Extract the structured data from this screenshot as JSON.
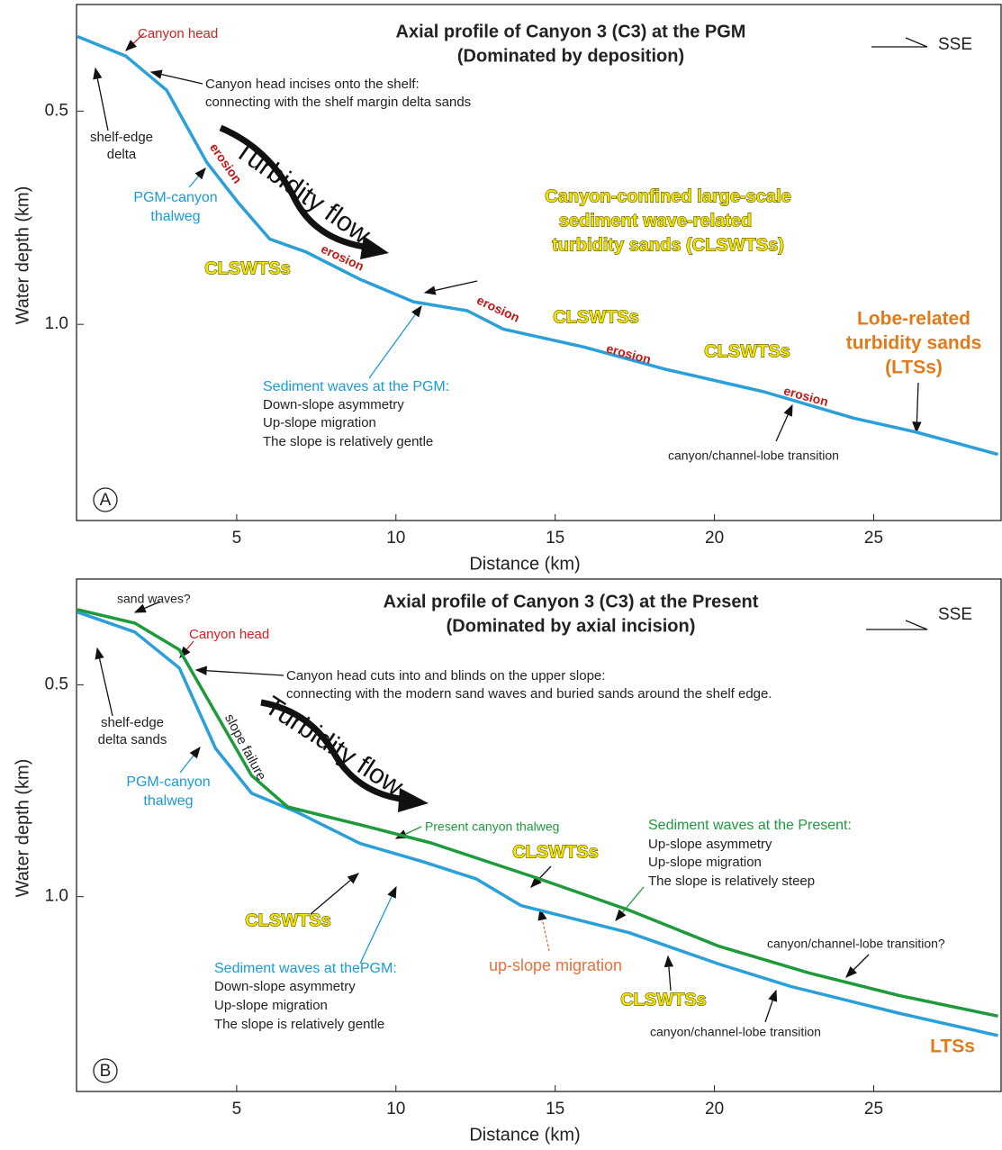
{
  "chart_data": [
    {
      "type": "line",
      "title": "Axial profile of Canyon 3 (C3) at the PGM",
      "subtitle": "(Dominated by deposition)",
      "xlabel": "Distance (km)",
      "ylabel": "Water depth (km)",
      "panel_label": "A",
      "direction": "SSE",
      "xlim": [
        0,
        29
      ],
      "ylim": [
        1.46,
        0.25
      ],
      "xticks": [
        5,
        10,
        15,
        20,
        25
      ],
      "yticks": [
        0.5,
        {
          "value": 1,
          "label": "1.0"
        }
      ],
      "series": [
        {
          "color": "#2a9fd8",
          "x": [
            0,
            1.52,
            2.8,
            4.06,
            5.05,
            6.04,
            7.17,
            8.86,
            10.55,
            12.24,
            13.37,
            15.9,
            18.45,
            21.55,
            24.37,
            26.35,
            28.9
          ],
          "values": [
            0.325,
            0.371,
            0.451,
            0.62,
            0.715,
            0.8,
            0.83,
            0.894,
            0.947,
            0.968,
            1.011,
            1.053,
            1.105,
            1.158,
            1.22,
            1.253,
            1.305
          ]
        }
      ],
      "annotations": [
        "Canyon head",
        "Canyon head incises onto the shelf:",
        "connecting with the shelf margin delta sands",
        "shelf-edge",
        "delta",
        "PGM-canyon",
        "thalweg",
        "erosion",
        "Turbidity flow",
        "erosion",
        "CLSWTSs",
        "Canyon-confined large-scale",
        "sediment wave-related",
        "turbidity sands (CLSWTSs)",
        "erosion",
        "CLSWTSs",
        "erosion",
        "CLSWTSs",
        "erosion",
        "Lobe-related",
        "turbidity sands",
        "(LTSs)",
        "Sediment waves at the PGM:",
        "Down-slope asymmetry",
        "Up-slope migration",
        "The slope is relatively gentle",
        "canyon/channel-lobe transition"
      ]
    },
    {
      "type": "line",
      "title": "Axial profile of Canyon 3 (C3) at the Present",
      "subtitle": "(Dominated by axial incision)",
      "xlabel": "Distance (km)",
      "ylabel": "Water depth (km)",
      "panel_label": "B",
      "direction": "SSE",
      "xlim": [
        0,
        29
      ],
      "ylim": [
        1.46,
        0.25
      ],
      "xticks": [
        5,
        10,
        15,
        20,
        25
      ],
      "yticks": [
        0.5,
        {
          "value": 1,
          "label": "1.0"
        }
      ],
      "series": [
        {
          "color": "#2a9fd8",
          "x": [
            0,
            1.8,
            3.2,
            4.34,
            5.47,
            6.88,
            8.86,
            10.83,
            12.52,
            13.93,
            17.32,
            20.14,
            22.4,
            25.78,
            28.9
          ],
          "values": [
            0.328,
            0.375,
            0.46,
            0.65,
            0.756,
            0.8,
            0.874,
            0.917,
            0.958,
            1.021,
            1.085,
            1.159,
            1.212,
            1.275,
            1.328
          ]
        },
        {
          "color": "#1e9a3c",
          "x": [
            0,
            1.8,
            3.2,
            4.34,
            5.47,
            6.6,
            8.86,
            11.1,
            14.5,
            17.32,
            20.14,
            22.96,
            25.78,
            28.9
          ],
          "values": [
            0.322,
            0.354,
            0.417,
            0.566,
            0.714,
            0.788,
            0.83,
            0.873,
            0.958,
            1.032,
            1.117,
            1.18,
            1.233,
            1.282
          ]
        }
      ],
      "annotations": [
        "sand waves?",
        "Canyon head",
        "Canyon head cuts into and blinds on the upper slope:",
        "connecting with the modern sand waves and buried sands around the shelf edge.",
        "shelf-edge",
        "delta sands",
        "slope failure",
        "PGM-canyon",
        "thalweg",
        "Turbidity flow",
        "Present canyon thalweg",
        "CLSWTSs",
        "Sediment waves at the Present:",
        "Up-slope asymmetry",
        "Up-slope migration",
        "The slope is relatively steep",
        "CLSWTSs",
        "canyon/channel-lobe transition?",
        "Sediment waves at thePGM:",
        "up-slope migration",
        "Down-slope asymmetry",
        "Up-slope migration",
        "The slope is relatively gentle",
        "CLSWTSs",
        "canyon/channel-lobe transition",
        "LTSs"
      ]
    }
  ]
}
